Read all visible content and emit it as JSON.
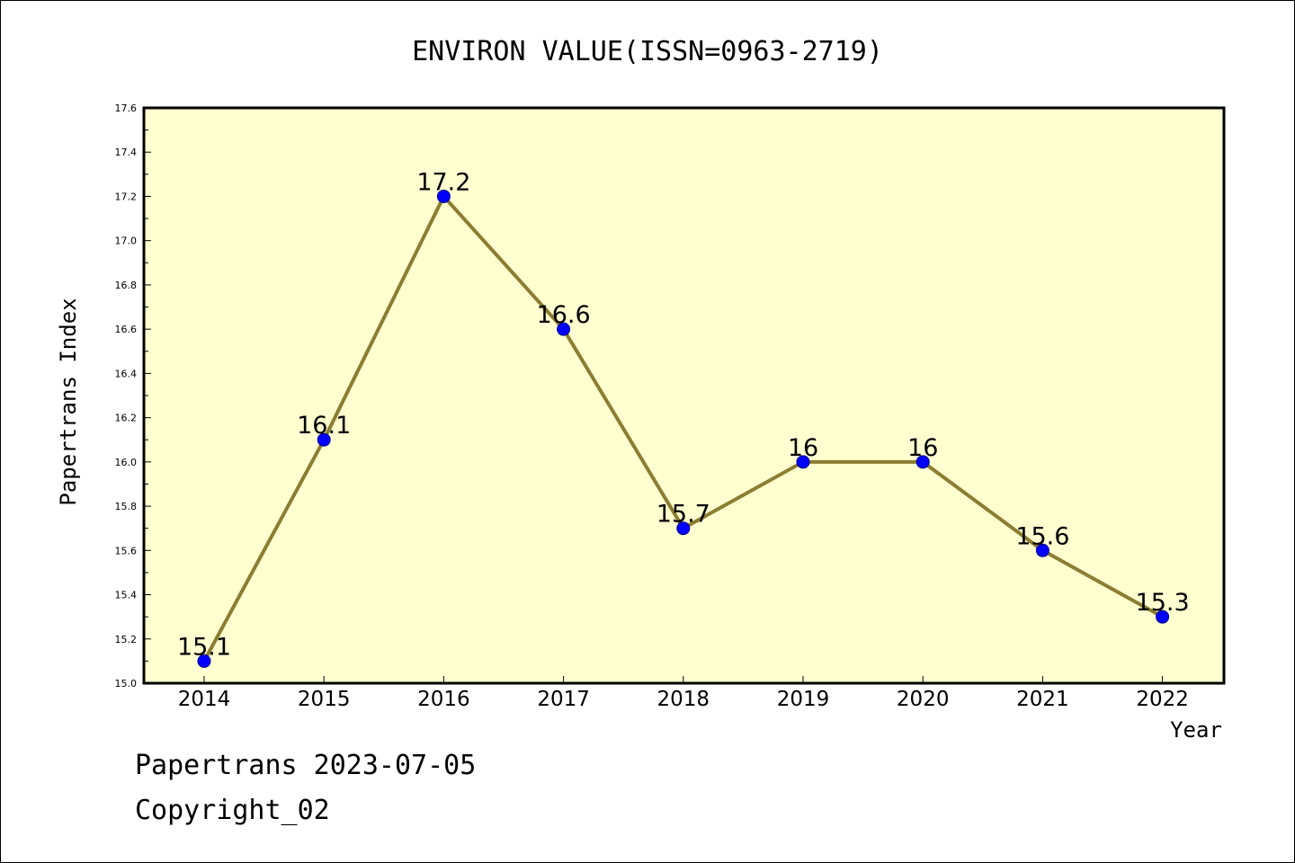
{
  "chart_data": {
    "type": "line",
    "title": "ENVIRON VALUE(ISSN=0963-2719)",
    "xlabel": "Year",
    "ylabel": "Papertrans Index",
    "categories": [
      "2014",
      "2015",
      "2016",
      "2017",
      "2018",
      "2019",
      "2020",
      "2021",
      "2022"
    ],
    "values": [
      15.1,
      16.1,
      17.2,
      16.6,
      15.7,
      16,
      16,
      15.6,
      15.3
    ],
    "data_labels": [
      "15.1",
      "16.1",
      "17.2",
      "16.6",
      "15.7",
      "16",
      "16",
      "15.6",
      "15.3"
    ],
    "ylim": [
      15.0,
      17.6
    ],
    "yticks": [
      "15.0",
      "15.2",
      "15.4",
      "15.6",
      "15.8",
      "16.0",
      "16.2",
      "16.4",
      "16.6",
      "16.8",
      "17.0",
      "17.2",
      "17.4",
      "17.6"
    ],
    "grid": false,
    "legend": "none",
    "colors": {
      "plot_background": "#ffffd0",
      "line": "#8b7d32",
      "marker": "#0000ff"
    }
  },
  "footer": {
    "source": "Papertrans 2023-07-05",
    "copyright": "Copyright_02"
  }
}
